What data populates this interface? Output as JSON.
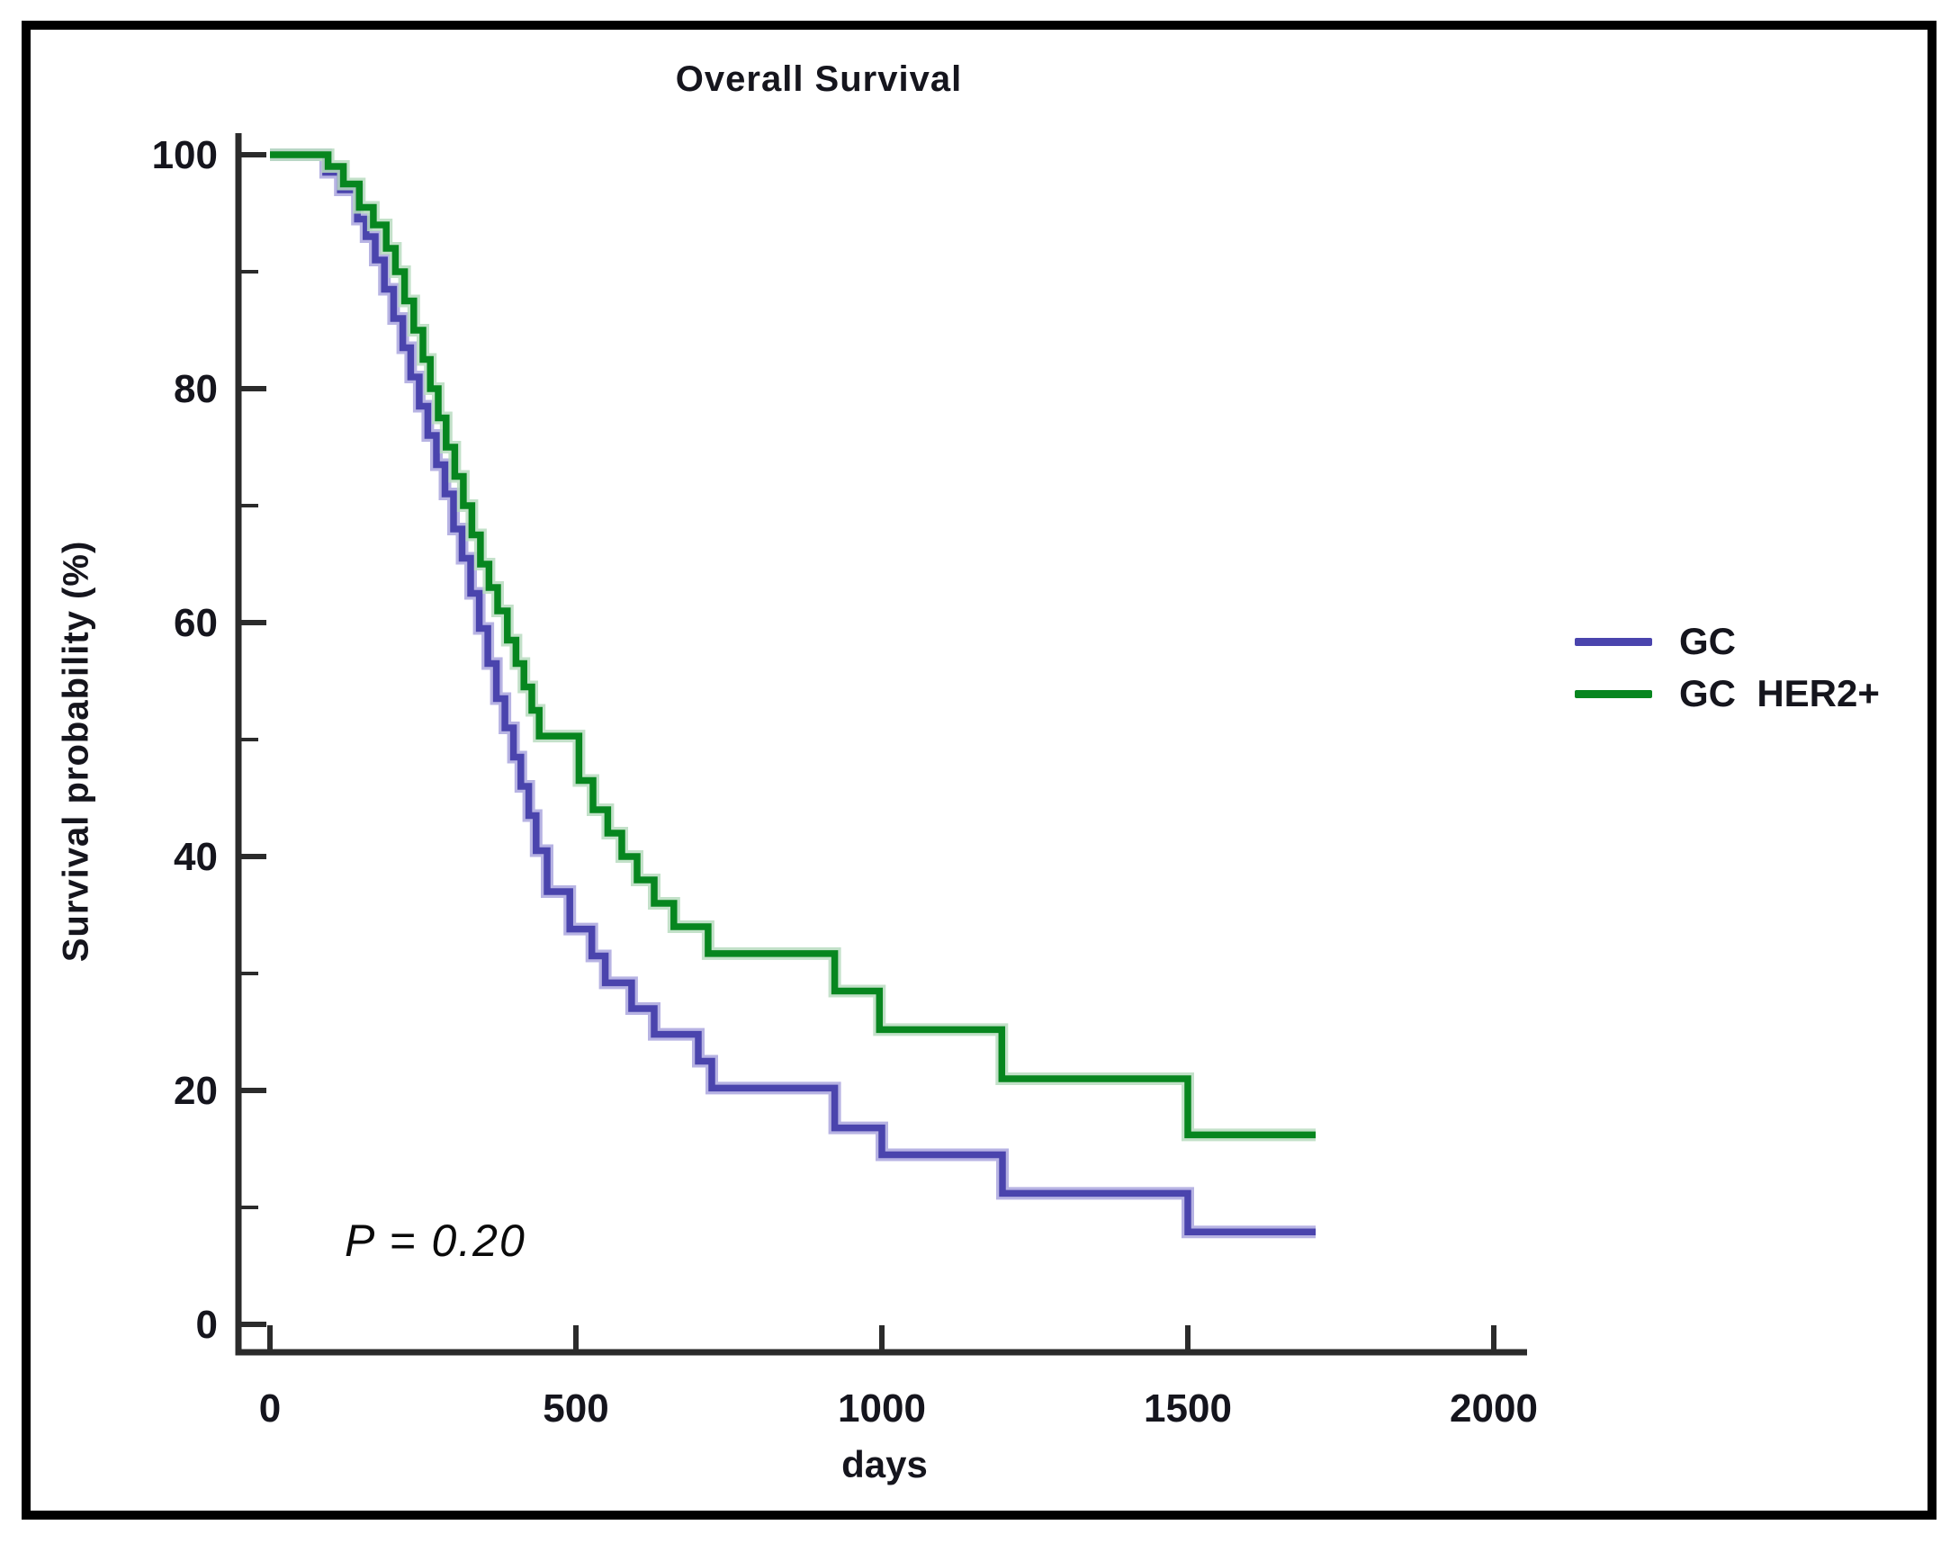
{
  "chart_data": {
    "type": "line",
    "subtype": "kaplan-meier-step",
    "title": "Overall Survival",
    "xlabel": "days",
    "ylabel": "Survival probability (%)",
    "annotation": "P = 0.20",
    "xlim": [
      0,
      2000
    ],
    "ylim": [
      0,
      100
    ],
    "x_ticks": [
      0,
      500,
      1000,
      1500,
      2000
    ],
    "y_ticks": [
      0,
      20,
      40,
      60,
      80,
      100
    ],
    "y_minor_ticks": [
      10,
      30,
      50,
      70,
      90
    ],
    "grid": "off",
    "legend_position": "right",
    "colors": {
      "axis": "#2b2b2b",
      "text": "#15151d"
    },
    "series": [
      {
        "name": "GC",
        "color": "#4a44ad",
        "halo": "#aaa6de",
        "end_x": 1709,
        "points": [
          [
            0,
            100
          ],
          [
            91,
            98.5
          ],
          [
            115,
            97
          ],
          [
            143,
            94.5
          ],
          [
            157,
            93
          ],
          [
            172,
            91
          ],
          [
            187,
            88.5
          ],
          [
            202,
            86
          ],
          [
            217,
            83.5
          ],
          [
            230,
            81
          ],
          [
            244,
            78.5
          ],
          [
            258,
            76
          ],
          [
            272,
            73.5
          ],
          [
            286,
            71
          ],
          [
            300,
            68
          ],
          [
            314,
            65.5
          ],
          [
            328,
            62.5
          ],
          [
            342,
            59.5
          ],
          [
            356,
            56.5
          ],
          [
            370,
            53.5
          ],
          [
            384,
            51
          ],
          [
            398,
            48.5
          ],
          [
            410,
            46
          ],
          [
            423,
            43.5
          ],
          [
            435,
            40.5
          ],
          [
            453,
            37
          ],
          [
            490,
            33.8
          ],
          [
            526,
            31.5
          ],
          [
            548,
            29.2
          ],
          [
            591,
            27
          ],
          [
            628,
            24.8
          ],
          [
            700,
            22.5
          ],
          [
            722,
            20.2
          ],
          [
            923,
            16.8
          ],
          [
            1000,
            14.5
          ],
          [
            1197,
            11.2
          ],
          [
            1500,
            7.9
          ]
        ]
      },
      {
        "name": "GC  HER2+",
        "color": "#07861f",
        "halo": "#b9dcbf",
        "end_x": 1709,
        "points": [
          [
            0,
            100
          ],
          [
            95,
            99
          ],
          [
            120,
            97.5
          ],
          [
            146,
            95.5
          ],
          [
            169,
            94
          ],
          [
            190,
            92
          ],
          [
            205,
            90
          ],
          [
            220,
            87.5
          ],
          [
            235,
            85
          ],
          [
            250,
            82.5
          ],
          [
            262,
            80
          ],
          [
            275,
            77.5
          ],
          [
            288,
            75
          ],
          [
            302,
            72.5
          ],
          [
            316,
            70
          ],
          [
            330,
            67.5
          ],
          [
            344,
            65
          ],
          [
            358,
            63
          ],
          [
            372,
            61
          ],
          [
            388,
            58.5
          ],
          [
            402,
            56.5
          ],
          [
            415,
            54.5
          ],
          [
            428,
            52.5
          ],
          [
            440,
            50.3
          ],
          [
            505,
            46.5
          ],
          [
            528,
            44
          ],
          [
            552,
            42
          ],
          [
            575,
            40
          ],
          [
            600,
            38
          ],
          [
            628,
            36
          ],
          [
            660,
            34
          ],
          [
            716,
            31.7
          ],
          [
            923,
            28.5
          ],
          [
            996,
            25.2
          ],
          [
            1196,
            21
          ],
          [
            1500,
            16.2
          ]
        ]
      }
    ]
  }
}
